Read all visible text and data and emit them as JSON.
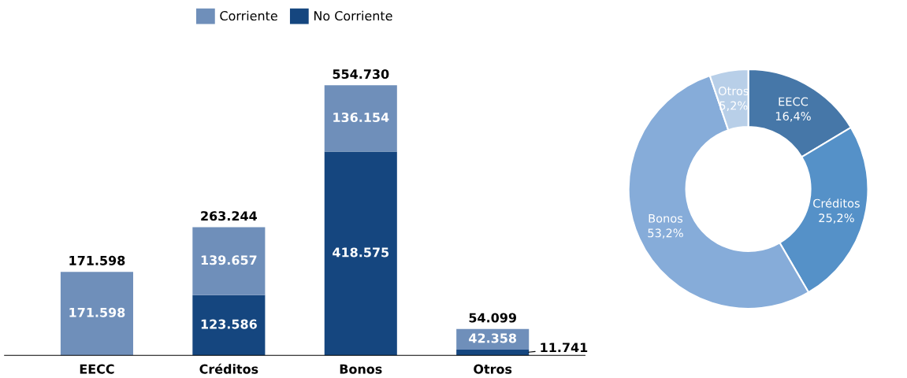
{
  "chart_data": [
    {
      "type": "bar",
      "stacked": true,
      "categories": [
        "EECC",
        "Créditos",
        "Bonos",
        "Otros"
      ],
      "legend": "top",
      "series": [
        {
          "name": "No Corriente",
          "color": "#15467f",
          "values": [
            null,
            123586,
            418575,
            11741
          ],
          "value_labels": [
            null,
            "123.586",
            "418.575",
            "11.741"
          ]
        },
        {
          "name": "Corriente",
          "color": "#6f8fba",
          "values": [
            171598,
            139657,
            136154,
            42358
          ],
          "value_labels": [
            "171.598",
            "139.657",
            "136.154",
            "42.358"
          ]
        }
      ],
      "totals": [
        "171.598",
        "263.244",
        "554.730",
        "54.099"
      ]
    },
    {
      "type": "donut",
      "categories": [
        "EECC",
        "Créditos",
        "Bonos",
        "Otros"
      ],
      "values": [
        16.4,
        25.2,
        53.2,
        5.2
      ],
      "colors": [
        "#4677a8",
        "#5591c8",
        "#86acd9",
        "#b8cfe8"
      ],
      "value_labels": [
        "16,4%",
        "25,2%",
        "53,2%",
        "5,2%"
      ]
    }
  ]
}
